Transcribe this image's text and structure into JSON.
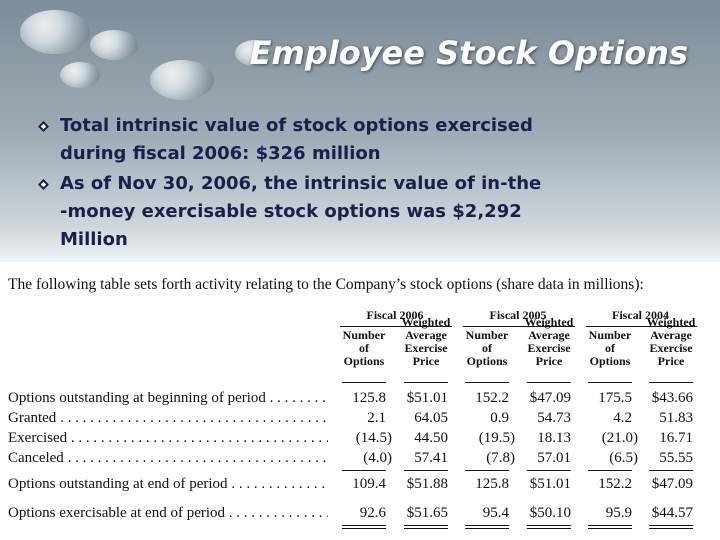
{
  "title": "Employee Stock Options",
  "bullets": [
    [
      "Total intrinsic value of stock options exercised",
      "during fiscal 2006: $326 million"
    ],
    [
      "As of Nov 30, 2006, the intrinsic value of in-the",
      "-money exercisable stock options was $2,292",
      "Million"
    ]
  ],
  "table": {
    "caption": "The following table sets forth activity relating to the Company’s stock options (share data in millions):",
    "fiscal_headers": [
      "Fiscal 2006",
      "Fiscal 2005",
      "Fiscal 2004"
    ],
    "column_headers": [
      [
        "Number",
        "of",
        "Options"
      ],
      [
        "Weighted",
        "Average",
        "Exercise",
        "Price"
      ]
    ],
    "rows": [
      [
        "Options outstanding at beginning of period",
        "125.8",
        "$51.01",
        "152.2",
        "$47.09",
        "175.5",
        "$43.66"
      ],
      [
        "Granted",
        "2.1",
        "64.05",
        "0.9",
        "54.73",
        "4.2",
        "51.83"
      ],
      [
        "Exercised",
        "(14.5)",
        "44.50",
        "(19.5)",
        "18.13",
        "(21.0)",
        "16.71"
      ],
      [
        "Canceled",
        "(4.0)",
        "57.41",
        "(7.8)",
        "57.01",
        "(6.5)",
        "55.55"
      ],
      [
        "Options outstanding at end of period",
        "109.4",
        "$51.88",
        "125.8",
        "$51.01",
        "152.2",
        "$47.09"
      ],
      [
        "Options exercisable at end of period",
        "92.6",
        "$51.65",
        "95.4",
        "$50.10",
        "95.9",
        "$44.57"
      ]
    ]
  }
}
